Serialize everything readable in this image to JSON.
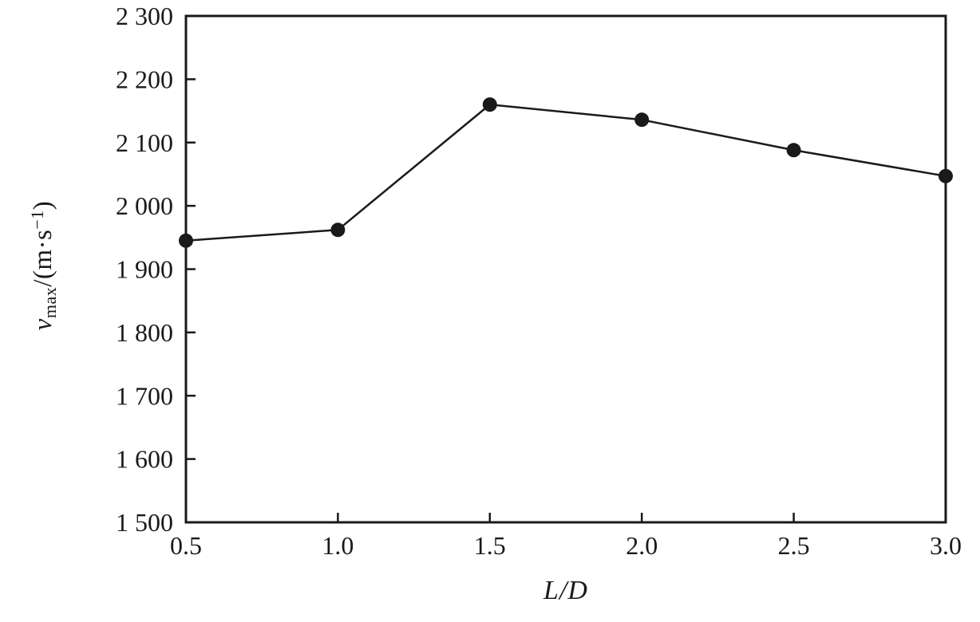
{
  "chart_data": {
    "type": "line",
    "x": [
      0.5,
      1.0,
      1.5,
      2.0,
      2.5,
      3.0
    ],
    "values": [
      1945,
      1962,
      2160,
      2136,
      2088,
      2047
    ],
    "series_name": "v_max",
    "xlabel": "L/D",
    "ylabel": "v_max/(m·s⁻¹)",
    "xlabel_parts": {
      "num": "L",
      "slash": "/",
      "den": "D"
    },
    "ylabel_parts": {
      "var": "v",
      "sub": "max",
      "mid": "/(m·s",
      "sup": "−1",
      "end": ")"
    },
    "xlim": [
      0.5,
      3.0
    ],
    "ylim": [
      1500,
      2300
    ],
    "ytick_step": 100,
    "ytick_labels": [
      "1 500",
      "1 600",
      "1 700",
      "1 800",
      "1 900",
      "2 000",
      "2 100",
      "2 200",
      "2 300"
    ],
    "xtick_labels": [
      "0.5",
      "1.0",
      "1.5",
      "2.0",
      "2.5",
      "3.0"
    ],
    "grid": false,
    "legend": "none",
    "marker": "circle",
    "line_color": "#1a1a1a",
    "marker_color": "#1a1a1a",
    "axis_color": "#1a1a1a",
    "background": "#ffffff"
  }
}
